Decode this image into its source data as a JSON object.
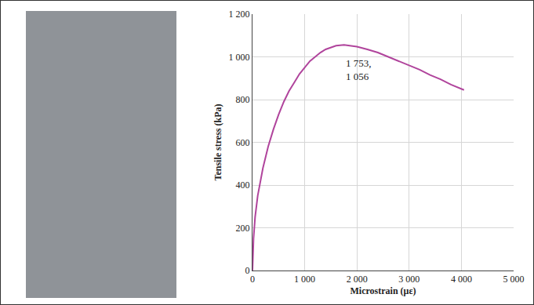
{
  "chart_data": {
    "type": "line",
    "x_label": "Microstrain (με)",
    "y_label": "Tensile stress (kPa)",
    "color": "#b0449c",
    "grid": true,
    "x": [
      0,
      20,
      50,
      100,
      200,
      300,
      400,
      500,
      600,
      700,
      800,
      900,
      1000,
      1100,
      1200,
      1300,
      1400,
      1500,
      1600,
      1753,
      1900,
      2000,
      2200,
      2400,
      2600,
      2800,
      3000,
      3200,
      3400,
      3600,
      3800,
      4000,
      4050
    ],
    "values": [
      0,
      150,
      250,
      350,
      480,
      580,
      660,
      730,
      790,
      840,
      880,
      920,
      950,
      980,
      1000,
      1020,
      1035,
      1045,
      1052,
      1056,
      1052,
      1048,
      1035,
      1020,
      1000,
      980,
      960,
      940,
      915,
      895,
      870,
      850,
      845
    ],
    "xlim": [
      0,
      5000
    ],
    "xticks": [
      0,
      {
        "value": 1000,
        "label": "1 000"
      },
      {
        "value": 2000,
        "label": "2 000"
      },
      {
        "value": 3000,
        "label": "3 000"
      },
      {
        "value": 4000,
        "label": "4 000"
      },
      {
        "value": 5000,
        "label": "5 000"
      }
    ],
    "ylim": [
      0,
      1200
    ],
    "yticks": [
      0,
      200,
      400,
      600,
      800,
      {
        "value": 1000,
        "label": "1 000"
      },
      {
        "value": 1200,
        "label": "1 200"
      }
    ],
    "annotations": [
      {
        "x": 1753,
        "y": 1056,
        "lines": [
          "1 753,",
          "1 056"
        ]
      }
    ]
  }
}
